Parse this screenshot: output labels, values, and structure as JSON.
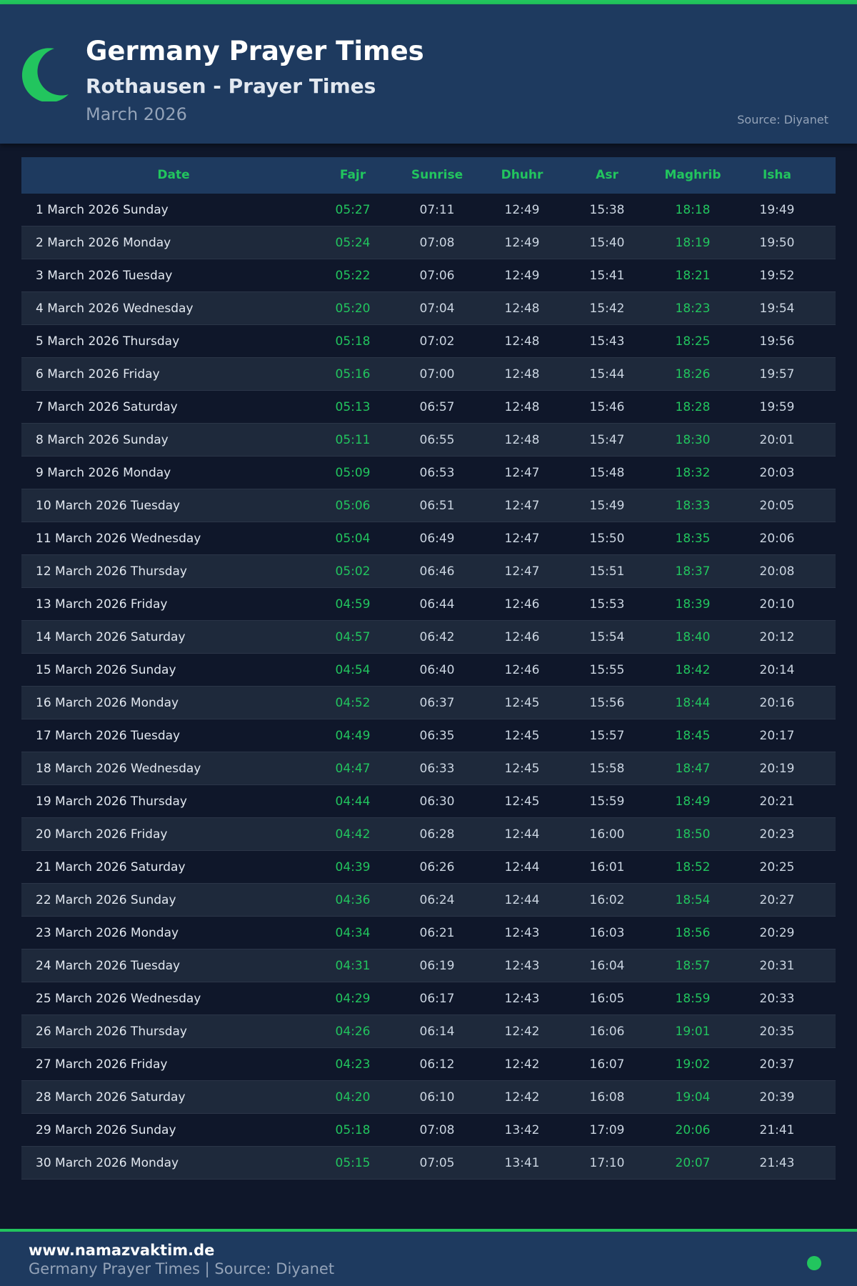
{
  "header": {
    "title": "Germany Prayer Times",
    "subtitle": "Rothausen - Prayer Times",
    "month": "March 2026",
    "source": "Source: Diyanet",
    "icon": "crescent-moon-icon"
  },
  "colors": {
    "accent": "#22c55e",
    "header_bg": "#1e3a5f",
    "page_bg": "#0f172a",
    "alt_row": "#1e293b"
  },
  "table": {
    "columns": [
      "Date",
      "Fajr",
      "Sunrise",
      "Dhuhr",
      "Asr",
      "Maghrib",
      "Isha"
    ],
    "rows": [
      [
        "1 March 2026 Sunday",
        "05:27",
        "07:11",
        "12:49",
        "15:38",
        "18:18",
        "19:49"
      ],
      [
        "2 March 2026 Monday",
        "05:24",
        "07:08",
        "12:49",
        "15:40",
        "18:19",
        "19:50"
      ],
      [
        "3 March 2026 Tuesday",
        "05:22",
        "07:06",
        "12:49",
        "15:41",
        "18:21",
        "19:52"
      ],
      [
        "4 March 2026 Wednesday",
        "05:20",
        "07:04",
        "12:48",
        "15:42",
        "18:23",
        "19:54"
      ],
      [
        "5 March 2026 Thursday",
        "05:18",
        "07:02",
        "12:48",
        "15:43",
        "18:25",
        "19:56"
      ],
      [
        "6 March 2026 Friday",
        "05:16",
        "07:00",
        "12:48",
        "15:44",
        "18:26",
        "19:57"
      ],
      [
        "7 March 2026 Saturday",
        "05:13",
        "06:57",
        "12:48",
        "15:46",
        "18:28",
        "19:59"
      ],
      [
        "8 March 2026 Sunday",
        "05:11",
        "06:55",
        "12:48",
        "15:47",
        "18:30",
        "20:01"
      ],
      [
        "9 March 2026 Monday",
        "05:09",
        "06:53",
        "12:47",
        "15:48",
        "18:32",
        "20:03"
      ],
      [
        "10 March 2026 Tuesday",
        "05:06",
        "06:51",
        "12:47",
        "15:49",
        "18:33",
        "20:05"
      ],
      [
        "11 March 2026 Wednesday",
        "05:04",
        "06:49",
        "12:47",
        "15:50",
        "18:35",
        "20:06"
      ],
      [
        "12 March 2026 Thursday",
        "05:02",
        "06:46",
        "12:47",
        "15:51",
        "18:37",
        "20:08"
      ],
      [
        "13 March 2026 Friday",
        "04:59",
        "06:44",
        "12:46",
        "15:53",
        "18:39",
        "20:10"
      ],
      [
        "14 March 2026 Saturday",
        "04:57",
        "06:42",
        "12:46",
        "15:54",
        "18:40",
        "20:12"
      ],
      [
        "15 March 2026 Sunday",
        "04:54",
        "06:40",
        "12:46",
        "15:55",
        "18:42",
        "20:14"
      ],
      [
        "16 March 2026 Monday",
        "04:52",
        "06:37",
        "12:45",
        "15:56",
        "18:44",
        "20:16"
      ],
      [
        "17 March 2026 Tuesday",
        "04:49",
        "06:35",
        "12:45",
        "15:57",
        "18:45",
        "20:17"
      ],
      [
        "18 March 2026 Wednesday",
        "04:47",
        "06:33",
        "12:45",
        "15:58",
        "18:47",
        "20:19"
      ],
      [
        "19 March 2026 Thursday",
        "04:44",
        "06:30",
        "12:45",
        "15:59",
        "18:49",
        "20:21"
      ],
      [
        "20 March 2026 Friday",
        "04:42",
        "06:28",
        "12:44",
        "16:00",
        "18:50",
        "20:23"
      ],
      [
        "21 March 2026 Saturday",
        "04:39",
        "06:26",
        "12:44",
        "16:01",
        "18:52",
        "20:25"
      ],
      [
        "22 March 2026 Sunday",
        "04:36",
        "06:24",
        "12:44",
        "16:02",
        "18:54",
        "20:27"
      ],
      [
        "23 March 2026 Monday",
        "04:34",
        "06:21",
        "12:43",
        "16:03",
        "18:56",
        "20:29"
      ],
      [
        "24 March 2026 Tuesday",
        "04:31",
        "06:19",
        "12:43",
        "16:04",
        "18:57",
        "20:31"
      ],
      [
        "25 March 2026 Wednesday",
        "04:29",
        "06:17",
        "12:43",
        "16:05",
        "18:59",
        "20:33"
      ],
      [
        "26 March 2026 Thursday",
        "04:26",
        "06:14",
        "12:42",
        "16:06",
        "19:01",
        "20:35"
      ],
      [
        "27 March 2026 Friday",
        "04:23",
        "06:12",
        "12:42",
        "16:07",
        "19:02",
        "20:37"
      ],
      [
        "28 March 2026 Saturday",
        "04:20",
        "06:10",
        "12:42",
        "16:08",
        "19:04",
        "20:39"
      ],
      [
        "29 March 2026 Sunday",
        "05:18",
        "07:08",
        "13:42",
        "17:09",
        "20:06",
        "21:41"
      ],
      [
        "30 March 2026 Monday",
        "05:15",
        "07:05",
        "13:41",
        "17:10",
        "20:07",
        "21:43"
      ]
    ]
  },
  "footer": {
    "site": "www.namazvaktim.de",
    "text": "Germany Prayer Times | Source: Diyanet"
  }
}
